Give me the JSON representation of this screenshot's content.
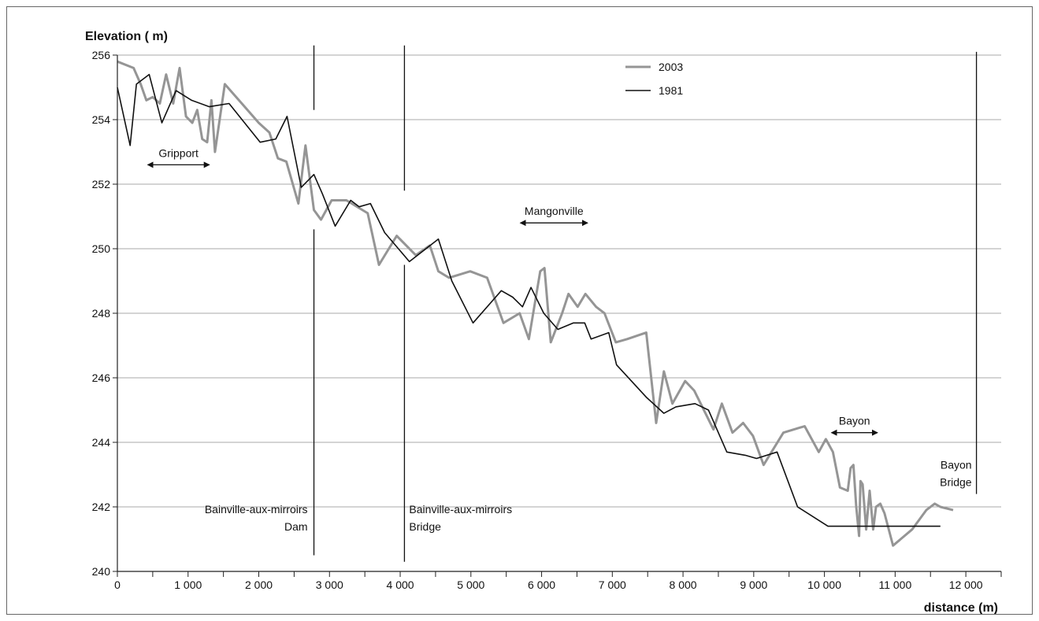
{
  "chart_data": {
    "type": "line",
    "title": "",
    "ylabel": "Elevation ( m)",
    "xlabel": "distance (m)",
    "xlim": [
      0,
      12500
    ],
    "ylim": [
      240,
      256
    ],
    "x_ticks": [
      0,
      1000,
      2000,
      3000,
      4000,
      5000,
      6000,
      7000,
      8000,
      9000,
      10000,
      11000,
      12000
    ],
    "x_tick_labels": [
      "0",
      "1 000",
      "2 000",
      "3 000",
      "4 000",
      "5 000",
      "6 000",
      "7 000",
      "8 000",
      "9 000",
      "10 000",
      "11 000",
      "12 000"
    ],
    "y_ticks": [
      240,
      242,
      244,
      246,
      248,
      250,
      252,
      254,
      256
    ],
    "y_tick_labels": [
      "240",
      "242",
      "244",
      "246",
      "248",
      "250",
      "252",
      "254",
      "256"
    ],
    "grid": "horizontal",
    "legend_position": "top-center",
    "series": [
      {
        "name": "2003",
        "color": "#959595",
        "x": [
          0,
          230,
          330,
          410,
          500,
          600,
          690,
          790,
          880,
          970,
          1060,
          1130,
          1200,
          1270,
          1330,
          1380,
          1520,
          1800,
          2000,
          2150,
          2270,
          2390,
          2560,
          2660,
          2780,
          2880,
          3030,
          3240,
          3540,
          3700,
          3950,
          4220,
          4420,
          4540,
          4690,
          4990,
          5230,
          5460,
          5690,
          5820,
          5980,
          6040,
          6130,
          6290,
          6380,
          6510,
          6620,
          6770,
          6890,
          7050,
          7210,
          7480,
          7620,
          7730,
          7850,
          8030,
          8160,
          8430,
          8550,
          8700,
          8850,
          8990,
          9140,
          9420,
          9720,
          9920,
          10020,
          10120,
          10220,
          10330,
          10370,
          10410,
          10450,
          10490,
          10510,
          10540,
          10590,
          10640,
          10690,
          10730,
          10790,
          10850,
          10970,
          11240,
          11440,
          11560,
          11640,
          11820
        ],
        "y": [
          255.8,
          255.6,
          255.1,
          254.6,
          254.7,
          254.5,
          255.4,
          254.5,
          255.6,
          254.1,
          253.9,
          254.3,
          253.4,
          253.3,
          254.6,
          253.0,
          255.1,
          254.4,
          253.9,
          253.6,
          252.8,
          252.7,
          251.4,
          253.2,
          251.2,
          250.9,
          251.5,
          251.5,
          251.1,
          249.5,
          250.4,
          249.8,
          250.1,
          249.3,
          249.1,
          249.3,
          249.1,
          247.7,
          248.0,
          247.2,
          249.3,
          249.4,
          247.1,
          248.0,
          248.6,
          248.2,
          248.6,
          248.2,
          248.0,
          247.1,
          247.2,
          247.4,
          244.6,
          246.2,
          245.2,
          245.9,
          245.6,
          244.4,
          245.2,
          244.3,
          244.6,
          244.2,
          243.3,
          244.3,
          244.5,
          243.7,
          244.1,
          243.7,
          242.6,
          242.5,
          243.2,
          243.3,
          242.0,
          241.1,
          242.8,
          242.7,
          241.3,
          242.5,
          241.3,
          242.0,
          242.1,
          241.8,
          240.8,
          241.3,
          241.9,
          242.1,
          242.0,
          241.9
        ]
      },
      {
        "name": "1981",
        "color": "#111111",
        "x": [
          0,
          180,
          270,
          450,
          630,
          830,
          1050,
          1300,
          1580,
          2020,
          2240,
          2400,
          2600,
          2780,
          2900,
          3080,
          3300,
          3420,
          3580,
          3780,
          4130,
          4540,
          4730,
          5030,
          5430,
          5590,
          5730,
          5850,
          6030,
          6230,
          6450,
          6610,
          6700,
          6950,
          7060,
          7480,
          7730,
          7900,
          8170,
          8360,
          8620,
          8880,
          9040,
          9330,
          9620,
          10050,
          10200,
          10400,
          10680,
          11020,
          11400,
          11640
        ],
        "y": [
          255.0,
          253.2,
          255.1,
          255.4,
          253.9,
          254.9,
          254.6,
          254.4,
          254.5,
          253.3,
          253.4,
          254.1,
          251.9,
          252.3,
          251.7,
          250.7,
          251.5,
          251.3,
          251.4,
          250.5,
          249.6,
          250.3,
          249.0,
          247.7,
          248.7,
          248.5,
          248.2,
          248.8,
          248.0,
          247.5,
          247.7,
          247.7,
          247.2,
          247.4,
          246.4,
          245.4,
          244.9,
          245.1,
          245.2,
          245.0,
          243.7,
          243.6,
          243.5,
          243.7,
          242.0,
          241.4,
          241.4,
          241.4,
          241.4,
          241.4,
          241.4,
          241.4
        ]
      }
    ],
    "annotations": [
      {
        "label": "Gripport",
        "type": "arrow-range",
        "x0": 430,
        "x1": 1300,
        "y": 252.6
      },
      {
        "label": "Mangonville",
        "type": "arrow-range",
        "x0": 5700,
        "x1": 6650,
        "y": 250.8
      },
      {
        "label": "Bayon",
        "type": "arrow-range",
        "x0": 10100,
        "x1": 10750,
        "y": 244.3
      }
    ],
    "markers": [
      {
        "label_lines": [
          "Bainville-aux-mirroirs",
          "Dam"
        ],
        "x": 2780
      },
      {
        "label_lines": [
          "Bainville-aux-mirroirs",
          "Bridge"
        ],
        "x": 4060
      },
      {
        "label_lines": [
          "Bayon",
          "Bridge"
        ],
        "x": 12150
      }
    ]
  }
}
